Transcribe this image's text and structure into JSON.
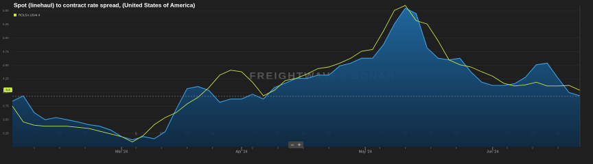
{
  "chart_data": {
    "type": "area_line",
    "title": "Spot (linehaul) to contract rate spread, (United States of America)",
    "watermark": "FREIGHTWAVES SONAR",
    "controls": {
      "zoom_out": "−",
      "zoom_in": "+"
    },
    "x": [
      0,
      3,
      6,
      9,
      12,
      15,
      18,
      21,
      24,
      27,
      30,
      33,
      36,
      39,
      42,
      45,
      48,
      51,
      54,
      57,
      60,
      63,
      66,
      69,
      72,
      75,
      78,
      81,
      84,
      87,
      90,
      93,
      96,
      99,
      102,
      105,
      108,
      111,
      114,
      117,
      120,
      123,
      126,
      129,
      132,
      135,
      138,
      141,
      144,
      147,
      150,
      153,
      156
    ],
    "xlim": [
      0,
      156
    ],
    "xticks": [
      {
        "value": 6,
        "label": "7"
      },
      {
        "value": 13,
        "label": "14"
      },
      {
        "value": 20,
        "label": "21"
      },
      {
        "value": 34,
        "label": "5"
      },
      {
        "value": 41,
        "label": "12"
      },
      {
        "value": 48,
        "label": "19"
      },
      {
        "value": 55,
        "label": "26"
      },
      {
        "value": 66,
        "label": "2"
      },
      {
        "value": 73,
        "label": "9"
      },
      {
        "value": 80,
        "label": "16"
      },
      {
        "value": 87,
        "label": "23"
      },
      {
        "value": 101,
        "label": "7"
      },
      {
        "value": 108,
        "label": "14"
      },
      {
        "value": 115,
        "label": "21"
      },
      {
        "value": 122,
        "label": "28"
      },
      {
        "value": 136,
        "label": "11"
      },
      {
        "value": 143,
        "label": "18"
      },
      {
        "value": 150,
        "label": "25"
      }
    ],
    "xmonths": [
      {
        "value": 30,
        "label": "Mar '24"
      },
      {
        "value": 63,
        "label": "Apr '24"
      },
      {
        "value": 97,
        "label": "May '24"
      },
      {
        "value": 132,
        "label": "Jun '24"
      }
    ],
    "ylim": [
      3.0,
      5.6
    ],
    "yticks": [
      {
        "value": 3.25,
        "label": "3.25"
      },
      {
        "value": 3.5,
        "label": "3.50"
      },
      {
        "value": 3.75,
        "label": "3.75"
      },
      {
        "value": 4,
        "label": "4.00"
      },
      {
        "value": 4.25,
        "label": "4.25"
      },
      {
        "value": 4.5,
        "label": "4.50"
      },
      {
        "value": 4.75,
        "label": "4.75"
      },
      {
        "value": 5,
        "label": "5.00"
      },
      {
        "value": 5.25,
        "label": "5.25"
      },
      {
        "value": 5.5,
        "label": "5.50"
      }
    ],
    "reference_line": 3.93,
    "series": [
      {
        "color": "#3d9fe0",
        "values": [
          3.84,
          3.94,
          3.63,
          3.5,
          3.54,
          3.5,
          3.46,
          3.41,
          3.38,
          3.31,
          3.19,
          3.13,
          3.19,
          3.15,
          3.28,
          3.69,
          4.07,
          4.11,
          4.04,
          3.82,
          3.88,
          3.88,
          3.97,
          3.88,
          4.09,
          4.17,
          4.26,
          4.26,
          4.32,
          4.32,
          4.49,
          4.54,
          4.63,
          4.63,
          4.88,
          5.26,
          5.55,
          5.45,
          4.82,
          4.63,
          4.6,
          4.63,
          4.38,
          4.19,
          4.13,
          4.13,
          4.16,
          4.28,
          4.51,
          4.54,
          4.26,
          4.0,
          3.94
        ]
      },
      {
        "name": "ROLSA.USA",
        "legend_value": 4.4,
        "color": "#c5e34a",
        "values": [
          3.75,
          3.46,
          3.4,
          3.38,
          3.38,
          3.38,
          3.36,
          3.34,
          3.29,
          3.24,
          3.19,
          3.09,
          3.21,
          3.41,
          3.54,
          3.63,
          3.79,
          3.91,
          4.09,
          4.32,
          4.41,
          4.38,
          4.19,
          3.94,
          4.04,
          4.22,
          4.26,
          4.34,
          4.44,
          4.47,
          4.54,
          4.63,
          4.76,
          4.79,
          5.13,
          5.51,
          5.6,
          5.32,
          5.26,
          4.95,
          4.6,
          4.51,
          4.47,
          4.38,
          4.3,
          4.17,
          4.12,
          4.14,
          4.19,
          4.12,
          4.12,
          4.13,
          4.04
        ]
      }
    ]
  }
}
